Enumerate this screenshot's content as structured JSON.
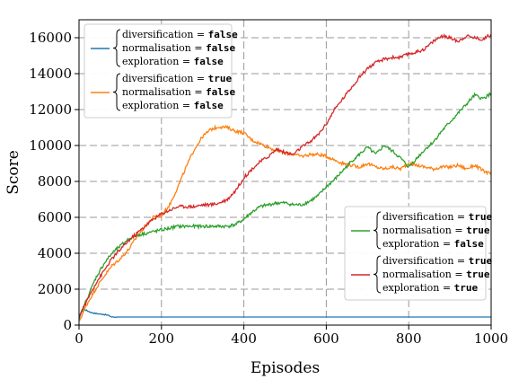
{
  "chart_data": {
    "type": "line",
    "xlabel": "Episodes",
    "ylabel": "Score",
    "xlim": [
      0,
      1000
    ],
    "ylim": [
      0,
      17000
    ],
    "x_ticks": [
      0,
      200,
      400,
      600,
      800,
      1000
    ],
    "y_ticks": [
      0,
      2000,
      4000,
      6000,
      8000,
      10000,
      12000,
      14000,
      16000
    ],
    "grid": true,
    "grid_style": "dashed",
    "legends": [
      {
        "placement": "top-left",
        "series": [
          0,
          1
        ]
      },
      {
        "placement": "center-right",
        "series": [
          2,
          3
        ]
      }
    ],
    "series": [
      {
        "color": "#1f77b4",
        "legend": [
          {
            "key": "diversification",
            "value": "false"
          },
          {
            "key": "normalisation",
            "value": "false"
          },
          {
            "key": "exploration",
            "value": "false"
          }
        ],
        "points": [
          [
            0,
            300
          ],
          [
            5,
            700
          ],
          [
            10,
            900
          ],
          [
            15,
            850
          ],
          [
            20,
            800
          ],
          [
            30,
            700
          ],
          [
            40,
            650
          ],
          [
            50,
            620
          ],
          [
            60,
            600
          ],
          [
            70,
            550
          ],
          [
            80,
            450
          ],
          [
            100,
            450
          ],
          [
            200,
            450
          ],
          [
            400,
            450
          ],
          [
            600,
            450
          ],
          [
            800,
            450
          ],
          [
            1000,
            450
          ]
        ]
      },
      {
        "color": "#ff7f0e",
        "legend": [
          {
            "key": "diversification",
            "value": "true"
          },
          {
            "key": "normalisation",
            "value": "false"
          },
          {
            "key": "exploration",
            "value": "false"
          }
        ],
        "points": [
          [
            0,
            200
          ],
          [
            20,
            1200
          ],
          [
            40,
            2000
          ],
          [
            60,
            2700
          ],
          [
            80,
            3300
          ],
          [
            100,
            3700
          ],
          [
            120,
            4200
          ],
          [
            140,
            4900
          ],
          [
            160,
            5500
          ],
          [
            180,
            6000
          ],
          [
            200,
            6100
          ],
          [
            220,
            6700
          ],
          [
            240,
            7700
          ],
          [
            260,
            8800
          ],
          [
            280,
            9800
          ],
          [
            300,
            10500
          ],
          [
            320,
            10900
          ],
          [
            340,
            11050
          ],
          [
            360,
            11000
          ],
          [
            380,
            10800
          ],
          [
            400,
            10700
          ],
          [
            420,
            10300
          ],
          [
            440,
            10100
          ],
          [
            460,
            9900
          ],
          [
            480,
            9700
          ],
          [
            500,
            9600
          ],
          [
            520,
            9500
          ],
          [
            540,
            9400
          ],
          [
            560,
            9500
          ],
          [
            580,
            9500
          ],
          [
            600,
            9400
          ],
          [
            620,
            9200
          ],
          [
            640,
            9000
          ],
          [
            660,
            8900
          ],
          [
            680,
            8800
          ],
          [
            700,
            9000
          ],
          [
            720,
            8800
          ],
          [
            740,
            8700
          ],
          [
            760,
            8800
          ],
          [
            780,
            8700
          ],
          [
            800,
            9000
          ],
          [
            820,
            8900
          ],
          [
            840,
            8800
          ],
          [
            860,
            8700
          ],
          [
            880,
            8800
          ],
          [
            900,
            8800
          ],
          [
            920,
            8900
          ],
          [
            940,
            8700
          ],
          [
            960,
            8900
          ],
          [
            980,
            8600
          ],
          [
            1000,
            8400
          ]
        ]
      },
      {
        "color": "#2ca02c",
        "legend": [
          {
            "key": "diversification",
            "value": "true"
          },
          {
            "key": "normalisation",
            "value": "true"
          },
          {
            "key": "exploration",
            "value": "false"
          }
        ],
        "points": [
          [
            0,
            400
          ],
          [
            20,
            1500
          ],
          [
            40,
            2600
          ],
          [
            60,
            3400
          ],
          [
            80,
            4000
          ],
          [
            100,
            4400
          ],
          [
            120,
            4800
          ],
          [
            140,
            5000
          ],
          [
            160,
            5100
          ],
          [
            180,
            5200
          ],
          [
            200,
            5300
          ],
          [
            220,
            5400
          ],
          [
            240,
            5500
          ],
          [
            260,
            5500
          ],
          [
            280,
            5500
          ],
          [
            300,
            5500
          ],
          [
            320,
            5500
          ],
          [
            340,
            5500
          ],
          [
            360,
            5500
          ],
          [
            380,
            5600
          ],
          [
            400,
            5900
          ],
          [
            420,
            6300
          ],
          [
            440,
            6600
          ],
          [
            460,
            6700
          ],
          [
            480,
            6800
          ],
          [
            500,
            6800
          ],
          [
            520,
            6700
          ],
          [
            540,
            6700
          ],
          [
            560,
            6900
          ],
          [
            580,
            7200
          ],
          [
            600,
            7700
          ],
          [
            620,
            8100
          ],
          [
            640,
            8600
          ],
          [
            660,
            9100
          ],
          [
            680,
            9500
          ],
          [
            700,
            9900
          ],
          [
            720,
            9500
          ],
          [
            740,
            10000
          ],
          [
            760,
            9700
          ],
          [
            780,
            9300
          ],
          [
            800,
            8800
          ],
          [
            820,
            9300
          ],
          [
            840,
            9800
          ],
          [
            860,
            10200
          ],
          [
            880,
            10800
          ],
          [
            900,
            11300
          ],
          [
            920,
            11800
          ],
          [
            940,
            12300
          ],
          [
            960,
            12800
          ],
          [
            980,
            12600
          ],
          [
            1000,
            12900
          ]
        ]
      },
      {
        "color": "#d62728",
        "legend": [
          {
            "key": "diversification",
            "value": "true"
          },
          {
            "key": "normalisation",
            "value": "true"
          },
          {
            "key": "exploration",
            "value": "true"
          }
        ],
        "points": [
          [
            0,
            500
          ],
          [
            20,
            1400
          ],
          [
            40,
            2300
          ],
          [
            60,
            3000
          ],
          [
            80,
            3700
          ],
          [
            100,
            4200
          ],
          [
            120,
            4700
          ],
          [
            140,
            5100
          ],
          [
            160,
            5500
          ],
          [
            180,
            5900
          ],
          [
            200,
            6200
          ],
          [
            220,
            6400
          ],
          [
            240,
            6600
          ],
          [
            260,
            6600
          ],
          [
            280,
            6600
          ],
          [
            300,
            6700
          ],
          [
            320,
            6700
          ],
          [
            340,
            6800
          ],
          [
            360,
            7000
          ],
          [
            380,
            7500
          ],
          [
            400,
            8200
          ],
          [
            420,
            8700
          ],
          [
            440,
            9100
          ],
          [
            460,
            9400
          ],
          [
            480,
            9800
          ],
          [
            500,
            9600
          ],
          [
            520,
            9500
          ],
          [
            540,
            9900
          ],
          [
            560,
            10200
          ],
          [
            580,
            10600
          ],
          [
            600,
            11200
          ],
          [
            620,
            12000
          ],
          [
            640,
            12600
          ],
          [
            660,
            13200
          ],
          [
            680,
            13800
          ],
          [
            700,
            14300
          ],
          [
            720,
            14600
          ],
          [
            740,
            14800
          ],
          [
            760,
            14900
          ],
          [
            780,
            14900
          ],
          [
            800,
            15100
          ],
          [
            820,
            15200
          ],
          [
            840,
            15400
          ],
          [
            860,
            15800
          ],
          [
            880,
            16100
          ],
          [
            900,
            16000
          ],
          [
            920,
            15800
          ],
          [
            940,
            16100
          ],
          [
            960,
            16000
          ],
          [
            980,
            15900
          ],
          [
            1000,
            16200
          ]
        ]
      }
    ]
  }
}
